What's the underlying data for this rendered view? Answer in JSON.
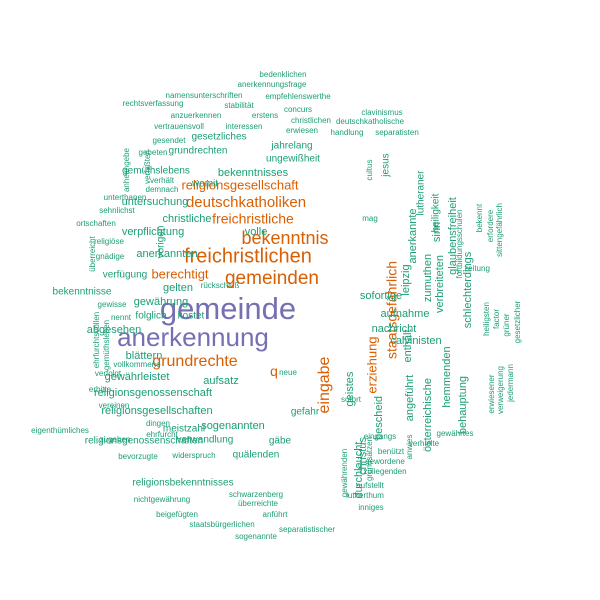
{
  "colors": {
    "teal": "#1b9e77",
    "orange": "#d95f02",
    "purple": "#7570b3"
  },
  "words": [
    {
      "text": "gemeinde",
      "color": "purple"
    },
    {
      "text": "anerkennung",
      "color": "purple"
    },
    {
      "text": "freichristlichen",
      "color": "orange"
    },
    {
      "text": "gemeinden",
      "color": "orange"
    },
    {
      "text": "bekenntnis",
      "color": "orange"
    },
    {
      "text": "deutschkatholiken",
      "color": "orange"
    },
    {
      "text": "grundrechte",
      "color": "orange"
    },
    {
      "text": "freichristliche",
      "color": "orange"
    },
    {
      "text": "religionsgesellschaft",
      "color": "orange"
    },
    {
      "text": "eingabe",
      "color": "orange"
    },
    {
      "text": "staatsgefährlich",
      "color": "orange"
    },
    {
      "text": "erziehung",
      "color": "orange"
    },
    {
      "text": "berechtigt",
      "color": "orange"
    },
    {
      "text": "b",
      "color": "orange"
    },
    {
      "text": "bedenklichen",
      "color": "teal"
    },
    {
      "text": "anerkennungsfrage",
      "color": "teal"
    },
    {
      "text": "namensunterschriften",
      "color": "teal"
    },
    {
      "text": "empfehlenswerthe",
      "color": "teal"
    },
    {
      "text": "rechtsverfassung",
      "color": "teal"
    },
    {
      "text": "stabilität",
      "color": "teal"
    },
    {
      "text": "concurs",
      "color": "teal"
    },
    {
      "text": "clavinismus",
      "color": "teal"
    },
    {
      "text": "anzuerkennen",
      "color": "teal"
    },
    {
      "text": "erstens",
      "color": "teal"
    },
    {
      "text": "christlichen",
      "color": "teal"
    },
    {
      "text": "deutschkatholische",
      "color": "teal"
    },
    {
      "text": "vertrauensvoll",
      "color": "teal"
    },
    {
      "text": "interessen",
      "color": "teal"
    },
    {
      "text": "erwiesen",
      "color": "teal"
    },
    {
      "text": "handlung",
      "color": "teal"
    },
    {
      "text": "separatisten",
      "color": "teal"
    },
    {
      "text": "gesetzliches",
      "color": "teal"
    },
    {
      "text": "gesendet",
      "color": "teal"
    },
    {
      "text": "gebeten",
      "color": "teal"
    },
    {
      "text": "grundrechten",
      "color": "teal"
    },
    {
      "text": "jahrelang",
      "color": "teal"
    },
    {
      "text": "ungewißheit",
      "color": "teal"
    },
    {
      "text": "gemüthslebens",
      "color": "teal"
    },
    {
      "text": "bekenntnisses",
      "color": "teal"
    },
    {
      "text": "womit",
      "color": "teal"
    },
    {
      "text": "untersuchung",
      "color": "teal"
    },
    {
      "text": "verpflichtung",
      "color": "teal"
    },
    {
      "text": "christliche",
      "color": "teal"
    },
    {
      "text": "volle",
      "color": "teal"
    },
    {
      "text": "anerkannten",
      "color": "teal"
    },
    {
      "text": "gelten",
      "color": "teal"
    },
    {
      "text": "rückschluß",
      "color": "teal"
    },
    {
      "text": "gewährung",
      "color": "teal"
    },
    {
      "text": "folglich",
      "color": "teal"
    },
    {
      "text": "kostet",
      "color": "teal"
    },
    {
      "text": "abgesehen",
      "color": "teal"
    },
    {
      "text": "blättern",
      "color": "teal"
    },
    {
      "text": "gewährleistet",
      "color": "teal"
    },
    {
      "text": "religionsgenossenschaft",
      "color": "teal"
    },
    {
      "text": "aufsatz",
      "color": "teal"
    },
    {
      "text": "religionsgesellschaften",
      "color": "teal"
    },
    {
      "text": "sogenannten",
      "color": "teal"
    },
    {
      "text": "meistzahl",
      "color": "teal"
    },
    {
      "text": "verwandlung",
      "color": "teal"
    },
    {
      "text": "gäbe",
      "color": "teal"
    },
    {
      "text": "quälenden",
      "color": "teal"
    },
    {
      "text": "religionsgenossenschaften",
      "color": "teal"
    },
    {
      "text": "religionsbekenntnisses",
      "color": "teal"
    },
    {
      "text": "schwarzenberg",
      "color": "teal"
    },
    {
      "text": "überreichte",
      "color": "teal"
    },
    {
      "text": "nichtgewährung",
      "color": "teal"
    },
    {
      "text": "anführt",
      "color": "teal"
    },
    {
      "text": "beigefügten",
      "color": "teal"
    },
    {
      "text": "staatsbürgerlichen",
      "color": "teal"
    },
    {
      "text": "separatistischer",
      "color": "teal"
    },
    {
      "text": "sogenannte",
      "color": "teal"
    },
    {
      "text": "inniges",
      "color": "teal"
    },
    {
      "text": "lutherthum",
      "color": "teal"
    },
    {
      "text": "aufstellt",
      "color": "teal"
    },
    {
      "text": "zuliegenden",
      "color": "teal"
    },
    {
      "text": "gewordene",
      "color": "teal"
    },
    {
      "text": "benützt",
      "color": "teal"
    },
    {
      "text": "gewährtes",
      "color": "teal"
    },
    {
      "text": "verhielte",
      "color": "teal"
    },
    {
      "text": "eingangs",
      "color": "teal"
    },
    {
      "text": "bescheid",
      "color": "teal"
    },
    {
      "text": "sofortige",
      "color": "teal"
    },
    {
      "text": "aufnahme",
      "color": "teal"
    },
    {
      "text": "nachricht",
      "color": "teal"
    },
    {
      "text": "calvinisten",
      "color": "teal"
    },
    {
      "text": "zeitung",
      "color": "teal"
    },
    {
      "text": "mag",
      "color": "teal"
    },
    {
      "text": "sofort",
      "color": "teal"
    },
    {
      "text": "neue",
      "color": "teal"
    },
    {
      "text": "gefahr",
      "color": "teal"
    },
    {
      "text": "dingen",
      "color": "teal"
    },
    {
      "text": "ehrfurcht",
      "color": "teal"
    },
    {
      "text": "bevorzugte",
      "color": "teal"
    },
    {
      "text": "widerspruch",
      "color": "teal"
    },
    {
      "text": "eigenthümliches",
      "color": "teal"
    },
    {
      "text": "zugeben",
      "color": "teal"
    },
    {
      "text": "vereinen",
      "color": "teal"
    },
    {
      "text": "erbitte",
      "color": "teal"
    },
    {
      "text": "verfolgt",
      "color": "teal"
    },
    {
      "text": "vollkommene",
      "color": "teal"
    },
    {
      "text": "nennt",
      "color": "teal"
    },
    {
      "text": "gewisse",
      "color": "teal"
    },
    {
      "text": "bekenntnisse",
      "color": "teal"
    },
    {
      "text": "verfügung",
      "color": "teal"
    },
    {
      "text": "gnädige",
      "color": "teal"
    },
    {
      "text": "religiöse",
      "color": "teal"
    },
    {
      "text": "ortschaften",
      "color": "teal"
    },
    {
      "text": "sehnlichst",
      "color": "teal"
    },
    {
      "text": "unterthanen",
      "color": "teal"
    },
    {
      "text": "verhält",
      "color": "teal"
    },
    {
      "text": "demnach",
      "color": "teal"
    },
    {
      "text": "cultus",
      "color": "teal"
    },
    {
      "text": "jesus",
      "color": "teal"
    },
    {
      "text": "lutheraner",
      "color": "teal"
    },
    {
      "text": "anerkannte",
      "color": "teal"
    },
    {
      "text": "leipzig",
      "color": "teal"
    },
    {
      "text": "zumuthen",
      "color": "teal"
    },
    {
      "text": "sinn",
      "color": "teal"
    },
    {
      "text": "verbreiteten",
      "color": "teal"
    },
    {
      "text": "heiligkeit",
      "color": "teal"
    },
    {
      "text": "glaubensfreiheit",
      "color": "teal"
    },
    {
      "text": "schlechterdings",
      "color": "teal"
    },
    {
      "text": "fortbildungsschulen",
      "color": "teal"
    },
    {
      "text": "bekennt",
      "color": "teal"
    },
    {
      "text": "erfordere",
      "color": "teal"
    },
    {
      "text": "sittengefährlich",
      "color": "teal"
    },
    {
      "text": "heiligsten",
      "color": "teal"
    },
    {
      "text": "factor",
      "color": "teal"
    },
    {
      "text": "gesetzlicher",
      "color": "teal"
    },
    {
      "text": "grüner",
      "color": "teal"
    },
    {
      "text": "erwiesener",
      "color": "teal"
    },
    {
      "text": "verweigerung",
      "color": "teal"
    },
    {
      "text": "jedermann",
      "color": "teal"
    },
    {
      "text": "hemmenden",
      "color": "teal"
    },
    {
      "text": "behauptung",
      "color": "teal"
    },
    {
      "text": "österreichische",
      "color": "teal"
    },
    {
      "text": "enthält",
      "color": "teal"
    },
    {
      "text": "angeführt",
      "color": "teal"
    },
    {
      "text": "geistes",
      "color": "teal"
    },
    {
      "text": "christus",
      "color": "teal"
    },
    {
      "text": "durchlaucht",
      "color": "teal"
    },
    {
      "text": "grundsätzen",
      "color": "teal"
    },
    {
      "text": "gewährenden",
      "color": "teal"
    },
    {
      "text": "anwies",
      "color": "teal"
    },
    {
      "text": "anheimgebe",
      "color": "teal"
    },
    {
      "text": "verfaßten",
      "color": "teal"
    },
    {
      "text": "vorigen",
      "color": "teal"
    },
    {
      "text": "überreicht",
      "color": "teal"
    },
    {
      "text": "ehrfurchtsvollen",
      "color": "teal"
    },
    {
      "text": "gemüthsleben",
      "color": "teal"
    }
  ]
}
